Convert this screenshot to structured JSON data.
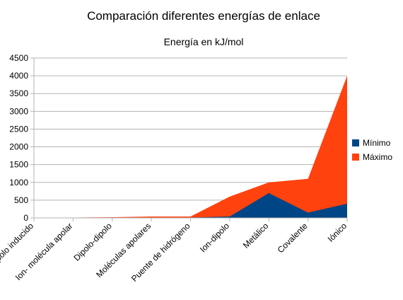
{
  "chart_data": {
    "type": "area",
    "title": "Comparación diferentes energías de enlace",
    "subtitle": "Energía en kJ/mol",
    "categories": [
      "Dipolo-dipolo inducido",
      "Ion- molécula apolar",
      "Dipolo-dipolo",
      "Moléculas apolares",
      "Puente de hidrógeno",
      "Ion-dipolo",
      "Metálico",
      "Covalente",
      "Iónico"
    ],
    "series": [
      {
        "name": "Mínimo",
        "color": "#004586",
        "values": [
          2,
          3,
          5,
          10,
          10,
          40,
          700,
          150,
          400
        ]
      },
      {
        "name": "Máximo",
        "color": "#ff420e",
        "values": [
          5,
          10,
          20,
          40,
          40,
          600,
          1000,
          1100,
          4000
        ]
      }
    ],
    "ylim": [
      0,
      4500
    ],
    "yticks": [
      0,
      500,
      1000,
      1500,
      2000,
      2500,
      3000,
      3500,
      4000,
      4500
    ],
    "grid": true,
    "legend": "right"
  }
}
